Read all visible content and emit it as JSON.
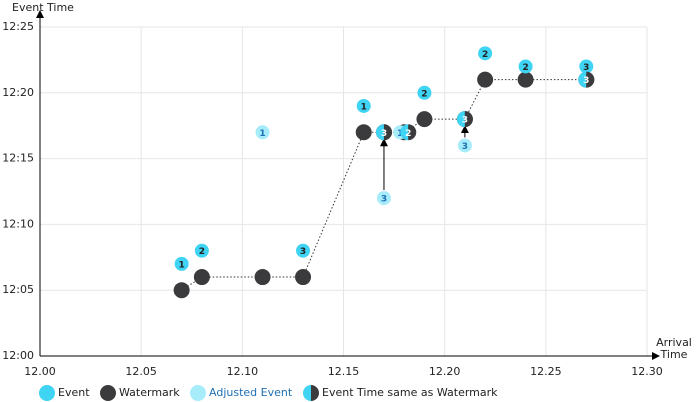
{
  "chart_data": {
    "type": "scatter",
    "y_label": "Event Time",
    "x_label": "Arrival Time",
    "xlim": [
      0,
      30
    ],
    "ylim": [
      0,
      25
    ],
    "xticks": [
      {
        "value": 0,
        "label": "12.00"
      },
      {
        "value": 5,
        "label": "12.05"
      },
      {
        "value": 10,
        "label": "12.10"
      },
      {
        "value": 15,
        "label": "12.15"
      },
      {
        "value": 20,
        "label": "12.20"
      },
      {
        "value": 25,
        "label": "12.25"
      },
      {
        "value": 30,
        "label": "12.30"
      }
    ],
    "yticks": [
      {
        "value": 0,
        "label": "12:00"
      },
      {
        "value": 5,
        "label": "12:05"
      },
      {
        "value": 10,
        "label": "12:10"
      },
      {
        "value": 15,
        "label": "12:15"
      },
      {
        "value": 20,
        "label": "12:20"
      },
      {
        "value": 25,
        "label": "12:25"
      }
    ],
    "grid": true,
    "series": [
      {
        "name": "Watermark",
        "style": "watermark",
        "color": "#3b3b3d",
        "x": [
          7,
          8,
          11,
          13,
          16,
          17,
          18,
          19,
          21,
          22,
          24,
          27
        ],
        "values": [
          5,
          6,
          6,
          6,
          17,
          17,
          17,
          18,
          18,
          21,
          21,
          21
        ]
      },
      {
        "name": "Event",
        "style": "event",
        "color": "#3fd3f4",
        "x": [
          7,
          8,
          13,
          16,
          19,
          22,
          24,
          27
        ],
        "values": [
          7,
          8,
          8,
          19,
          20,
          23,
          22,
          22
        ],
        "labels": [
          "1",
          "2",
          "3",
          "1",
          "2",
          "2",
          "2",
          "3"
        ]
      },
      {
        "name": "Adjusted Event",
        "style": "adjusted",
        "color": "#a6ecfa",
        "legend_color": "#1f6fb5",
        "x": [
          11,
          17,
          17.8,
          21
        ],
        "values": [
          17,
          12,
          17,
          16
        ],
        "labels": [
          "1",
          "3",
          "1",
          "3"
        ]
      },
      {
        "name": "Event Time same as Watermark",
        "style": "same",
        "color": "#3fd3f4",
        "color2": "#3b3b3d",
        "x": [
          17,
          18.2,
          21,
          27
        ],
        "values": [
          17,
          17,
          18,
          21
        ],
        "labels": [
          "3",
          "2",
          "3",
          "3"
        ]
      }
    ]
  }
}
